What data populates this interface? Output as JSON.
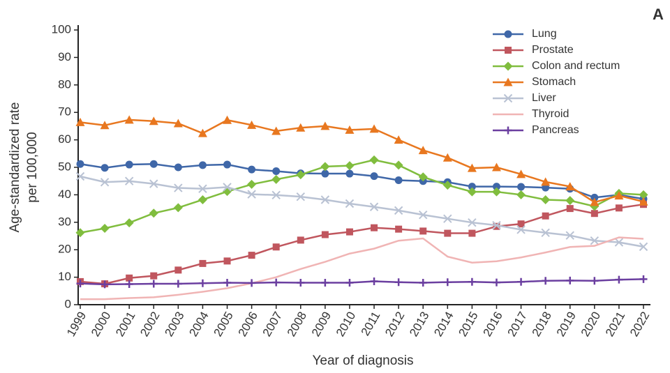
{
  "chart_data": {
    "type": "line",
    "panel_label": "A",
    "xlabel": "Year of diagnosis",
    "ylabel": [
      "Age-standardized rate",
      "per 100,000"
    ],
    "x": [
      1999,
      2000,
      2001,
      2002,
      2003,
      2004,
      2005,
      2006,
      2007,
      2008,
      2009,
      2010,
      2011,
      2012,
      2013,
      2014,
      2015,
      2016,
      2017,
      2018,
      2019,
      2020,
      2021,
      2022
    ],
    "xlim": [
      1999,
      2022
    ],
    "ylim": [
      0,
      100
    ],
    "yticks": [
      0,
      10,
      20,
      30,
      40,
      50,
      60,
      70,
      80,
      90,
      100
    ],
    "grid": false,
    "legend": "top-right",
    "series": [
      {
        "name": "Lung",
        "color": "#3f67a8",
        "marker": "circle",
        "values": [
          51.2,
          49.8,
          51,
          51.2,
          50,
          50.8,
          51,
          49.2,
          48.6,
          47.8,
          47.7,
          47.7,
          46.8,
          45.3,
          45,
          44.6,
          43,
          43,
          42.9,
          42.6,
          42.2,
          39,
          40,
          38.5
        ]
      },
      {
        "name": "Prostate",
        "color": "#c0565e",
        "marker": "square",
        "values": [
          8.4,
          7.6,
          9.7,
          10.5,
          12.6,
          15,
          15.9,
          18,
          21,
          23.5,
          25.5,
          26.5,
          28,
          27.5,
          26.8,
          26,
          26,
          28.5,
          29.4,
          32.3,
          35,
          33.2,
          35.2,
          36.5
        ]
      },
      {
        "name": "Colon and rectum",
        "color": "#80bd3e",
        "marker": "diamond",
        "values": [
          26.2,
          27.8,
          29.8,
          33.3,
          35.3,
          38.2,
          41.2,
          43.8,
          45.6,
          47.3,
          50.3,
          50.6,
          52.7,
          50.8,
          46.5,
          43.5,
          41.1,
          41.1,
          40,
          38.2,
          37.9,
          35.8,
          40.5,
          40
        ]
      },
      {
        "name": "Stomach",
        "color": "#e8771f",
        "marker": "triangle",
        "values": [
          66.4,
          65.3,
          67.3,
          66.8,
          66,
          62.4,
          67.2,
          65.4,
          63.2,
          64.4,
          65,
          63.6,
          64,
          60,
          56.2,
          53.5,
          49.7,
          50,
          47.5,
          44.7,
          43,
          37.3,
          39.7,
          37.5
        ]
      },
      {
        "name": "Liver",
        "color": "#b9c2d3",
        "marker": "x",
        "values": [
          46.7,
          44.6,
          45,
          44,
          42.5,
          42.2,
          42.8,
          40.2,
          39.9,
          39.3,
          38.2,
          36.8,
          35.6,
          34.3,
          32.7,
          31.3,
          29.9,
          28.9,
          27.3,
          26.2,
          25.2,
          23.3,
          22.7,
          21.1
        ]
      },
      {
        "name": "Thyroid",
        "color": "#f0b4b4",
        "marker": "none",
        "values": [
          2,
          2,
          2.4,
          2.7,
          3.6,
          4.7,
          6,
          7.8,
          10,
          13,
          15.6,
          18.6,
          20.4,
          23.3,
          24.1,
          17.5,
          15.3,
          15.8,
          17.2,
          19,
          21,
          21.4,
          24.5,
          24
        ]
      },
      {
        "name": "Pancreas",
        "color": "#6b3fa0",
        "marker": "plus",
        "values": [
          7.7,
          7.4,
          7.5,
          7.6,
          7.6,
          7.8,
          8,
          7.9,
          8.1,
          8,
          8,
          8,
          8.5,
          8.2,
          8,
          8.2,
          8.3,
          8.1,
          8.3,
          8.7,
          8.8,
          8.7,
          9.1,
          9.3
        ]
      }
    ]
  }
}
